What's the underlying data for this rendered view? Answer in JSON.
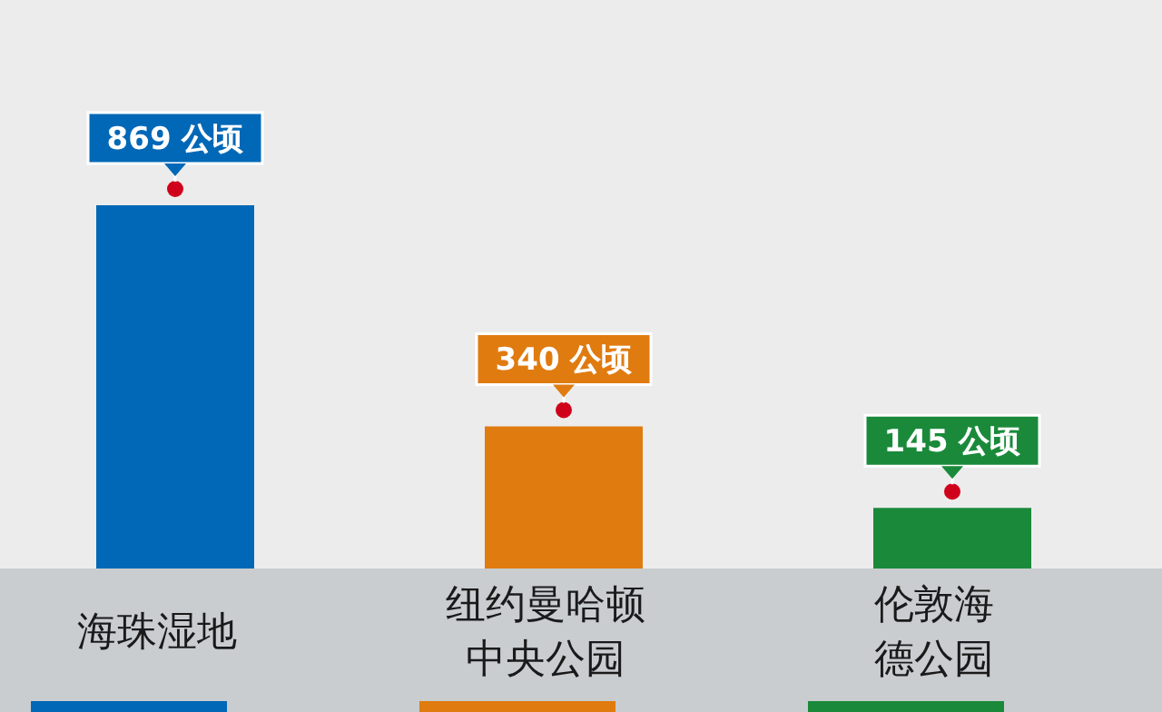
{
  "chart_data": {
    "type": "bar",
    "categories": [
      "海珠湿地",
      "纽约曼哈顿中央公园",
      "伦敦海德公园"
    ],
    "values": [
      869,
      340,
      145
    ],
    "colors": [
      "#0068b7",
      "#e07b10",
      "#1a8a3a"
    ],
    "value_labels": [
      "869 公顷",
      "340 公顷",
      "145 公顷"
    ]
  }
}
